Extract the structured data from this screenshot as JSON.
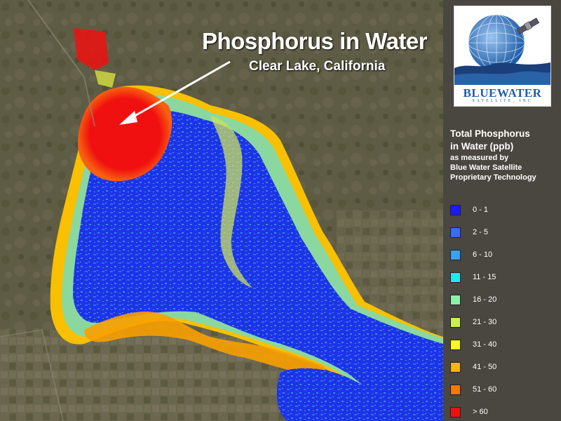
{
  "map": {
    "title": "Phosphorus in Water",
    "subtitle": "Clear Lake, California"
  },
  "logo": {
    "brand": "BLUEWATER",
    "brand_sub": "SATELLITE, INC"
  },
  "legend": {
    "title_line1": "Total Phosphorus",
    "title_line2": "in Water (ppb)",
    "note_line1": "as measured by",
    "note_line2": "Blue Water Satellite",
    "note_line3": "Proprietary Technology",
    "items": [
      {
        "label": "0 - 1",
        "color": "#1a1aff"
      },
      {
        "label": "2 - 5",
        "color": "#3a6cf0"
      },
      {
        "label": "6 - 10",
        "color": "#3aa0f0"
      },
      {
        "label": "11 - 15",
        "color": "#22e8f0"
      },
      {
        "label": "16 - 20",
        "color": "#8cf0a8"
      },
      {
        "label": "21 - 30",
        "color": "#c8f050"
      },
      {
        "label": "31 - 40",
        "color": "#f8f820"
      },
      {
        "label": "41 - 50",
        "color": "#f8b800"
      },
      {
        "label": "51 - 60",
        "color": "#f87800"
      },
      {
        "label": "> 60",
        "color": "#f01010"
      }
    ]
  }
}
